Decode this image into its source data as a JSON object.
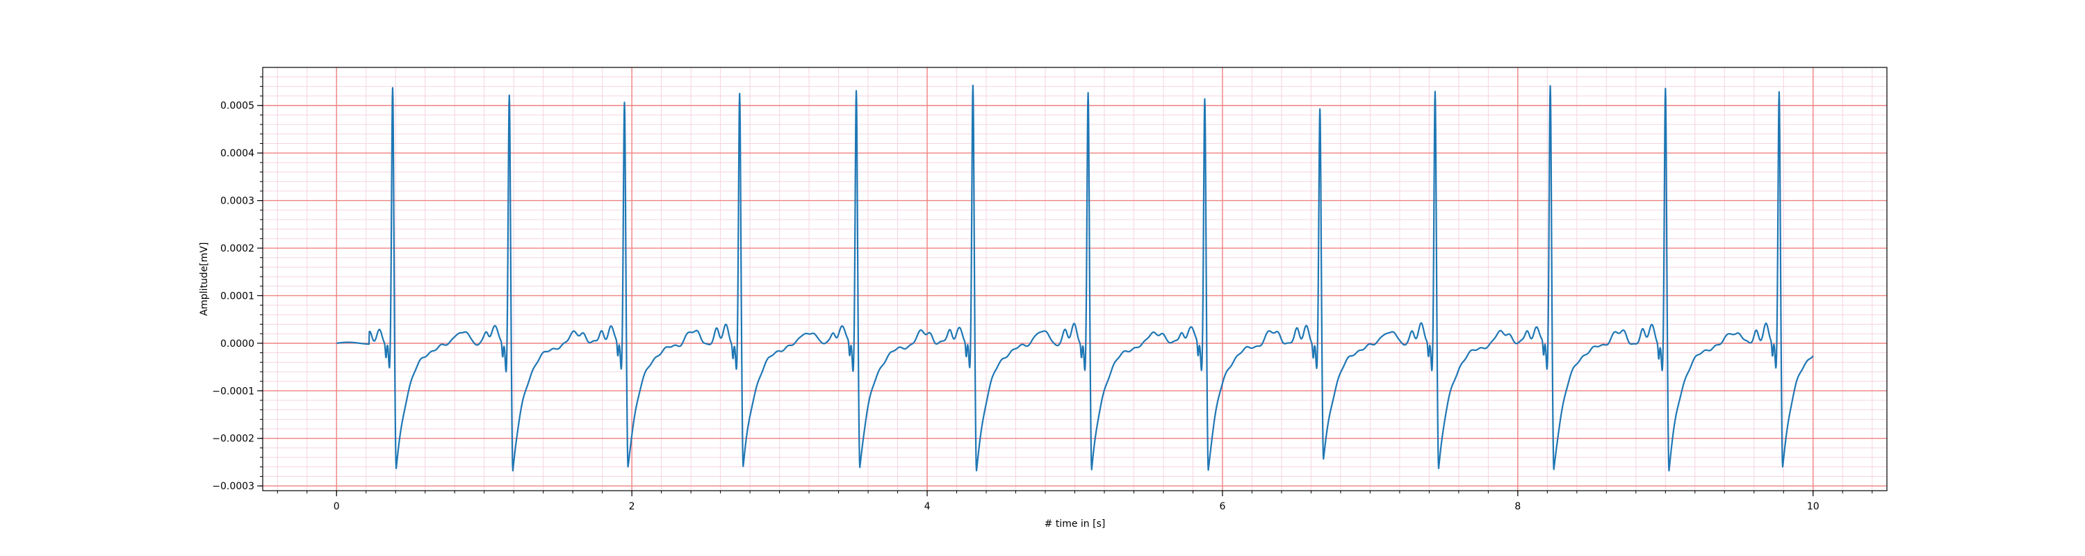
{
  "chart_data": {
    "type": "line",
    "title": "",
    "xlabel": "# time in [s]",
    "ylabel": "Amplitude[mV]",
    "xlim": [
      -0.5,
      10.5
    ],
    "ylim": [
      -0.00031,
      0.00058
    ],
    "x_ticks": [
      0,
      2,
      4,
      6,
      8,
      10
    ],
    "x_tick_labels": [
      "0",
      "2",
      "4",
      "6",
      "8",
      "10"
    ],
    "y_ticks": [
      -0.0003,
      -0.0002,
      -0.0001,
      0.0,
      0.0001,
      0.0002,
      0.0003,
      0.0004,
      0.0005
    ],
    "y_tick_labels": [
      "−0.0003",
      "−0.0002",
      "−0.0001",
      "0.0000",
      "0.0001",
      "0.0002",
      "0.0003",
      "0.0004",
      "0.0005"
    ],
    "grid": {
      "major": true,
      "minor": true,
      "major_color": "#f08080",
      "minor_color": "#f6d3e3"
    },
    "series": [
      {
        "color": "#1f77b4",
        "beats": [
          {
            "r_time": 0.38,
            "r_peak": 0.000535,
            "s_min": -0.000265
          },
          {
            "r_time": 1.17,
            "r_peak": 0.000525,
            "s_min": -0.000272
          },
          {
            "r_time": 1.95,
            "r_peak": 0.000505,
            "s_min": -0.000258
          },
          {
            "r_time": 2.73,
            "r_peak": 0.000525,
            "s_min": -0.000262
          },
          {
            "r_time": 3.52,
            "r_peak": 0.000535,
            "s_min": -0.000262
          },
          {
            "r_time": 4.31,
            "r_peak": 0.00054,
            "s_min": -0.000267
          },
          {
            "r_time": 5.09,
            "r_peak": 0.00053,
            "s_min": -0.00027
          },
          {
            "r_time": 5.88,
            "r_peak": 0.000515,
            "s_min": -0.000265
          },
          {
            "r_time": 6.66,
            "r_peak": 0.00049,
            "s_min": -0.000245
          },
          {
            "r_time": 7.44,
            "r_peak": 0.000535,
            "s_min": -0.000265
          },
          {
            "r_time": 8.22,
            "r_peak": 0.00054,
            "s_min": -0.000267
          },
          {
            "r_time": 9.0,
            "r_peak": 0.000535,
            "s_min": -0.00027
          },
          {
            "r_time": 9.77,
            "r_peak": 0.00053,
            "s_min": -0.000257
          }
        ]
      }
    ]
  }
}
